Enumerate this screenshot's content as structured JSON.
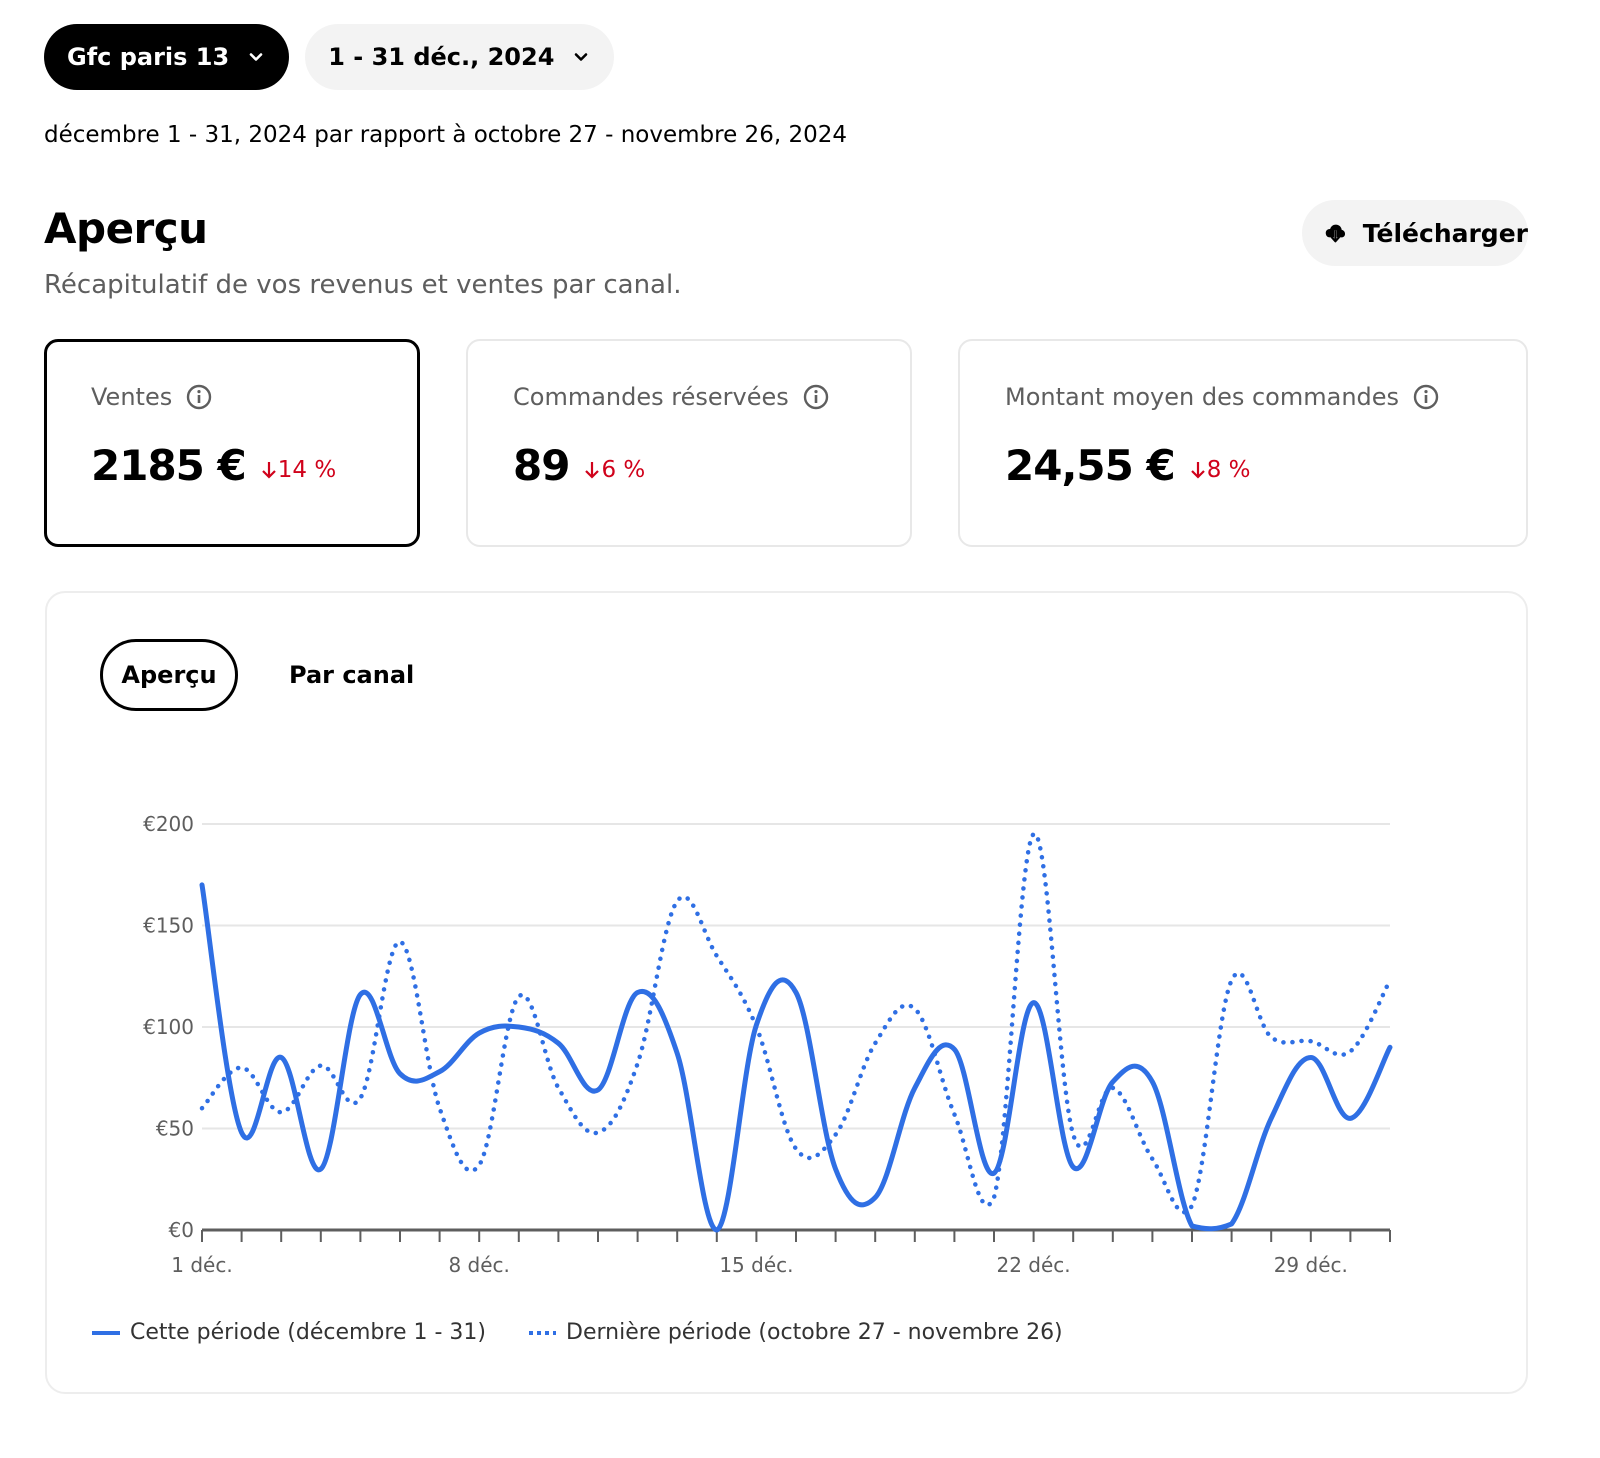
{
  "filters": {
    "store": "Gfc paris 13",
    "date_range": "1 - 31 déc., 2024"
  },
  "comparison_text": "décembre 1 - 31, 2024 par rapport à octobre 27 - novembre 26, 2024",
  "overview": {
    "title": "Aperçu",
    "subtitle": "Récapitulatif de vos revenus et ventes par canal.",
    "download_label": "Télécharger"
  },
  "metrics": [
    {
      "label": "Ventes",
      "value": "2185 €",
      "delta": "14 %",
      "direction": "down"
    },
    {
      "label": "Commandes réservées",
      "value": "89",
      "delta": "6 %",
      "direction": "down"
    },
    {
      "label": "Montant moyen des commandes",
      "value": "24,55 €",
      "delta": "8 %",
      "direction": "down"
    }
  ],
  "tabs": [
    {
      "label": "Aperçu",
      "selected": true
    },
    {
      "label": "Par canal",
      "selected": false
    }
  ],
  "colors": {
    "series": "#2f6fe4",
    "negative": "#d0021b",
    "grid": "#e6e6e6",
    "axis": "#5e5e5e"
  },
  "chart_data": {
    "type": "line",
    "x": [
      1,
      2,
      3,
      4,
      5,
      6,
      7,
      8,
      9,
      10,
      11,
      12,
      13,
      14,
      15,
      16,
      17,
      18,
      19,
      20,
      21,
      22,
      23,
      24,
      25,
      26,
      27,
      28,
      29,
      30,
      31
    ],
    "x_tick_labels": [
      {
        "day": 1,
        "label": "1 déc."
      },
      {
        "day": 8,
        "label": "8 déc."
      },
      {
        "day": 15,
        "label": "15 déc."
      },
      {
        "day": 22,
        "label": "22 déc."
      },
      {
        "day": 29,
        "label": "29 déc."
      }
    ],
    "y_ticks": [
      {
        "value": 0,
        "label": "€0"
      },
      {
        "value": 50,
        "label": "€50"
      },
      {
        "value": 100,
        "label": "€100"
      },
      {
        "value": 150,
        "label": "€150"
      },
      {
        "value": 200,
        "label": "€200"
      }
    ],
    "ylim": [
      0,
      200
    ],
    "grid": true,
    "legend_position": "bottom-left",
    "series": [
      {
        "name": "Cette période (décembre 1 - 31)",
        "style": "solid",
        "values": [
          170,
          48,
          85,
          30,
          116,
          77,
          78,
          97,
          100,
          92,
          69,
          117,
          87,
          0,
          101,
          117,
          30,
          16,
          70,
          89,
          28,
          112,
          31,
          73,
          73,
          2,
          3,
          55,
          85,
          55,
          90
        ]
      },
      {
        "name": "Dernière période (octobre 27 - novembre 26)",
        "style": "dotted",
        "values": [
          60,
          80,
          58,
          81,
          65,
          142,
          60,
          32,
          115,
          70,
          48,
          82,
          162,
          135,
          100,
          40,
          47,
          92,
          109,
          57,
          16,
          195,
          47,
          70,
          35,
          12,
          123,
          95,
          93,
          88,
          123
        ]
      }
    ]
  }
}
